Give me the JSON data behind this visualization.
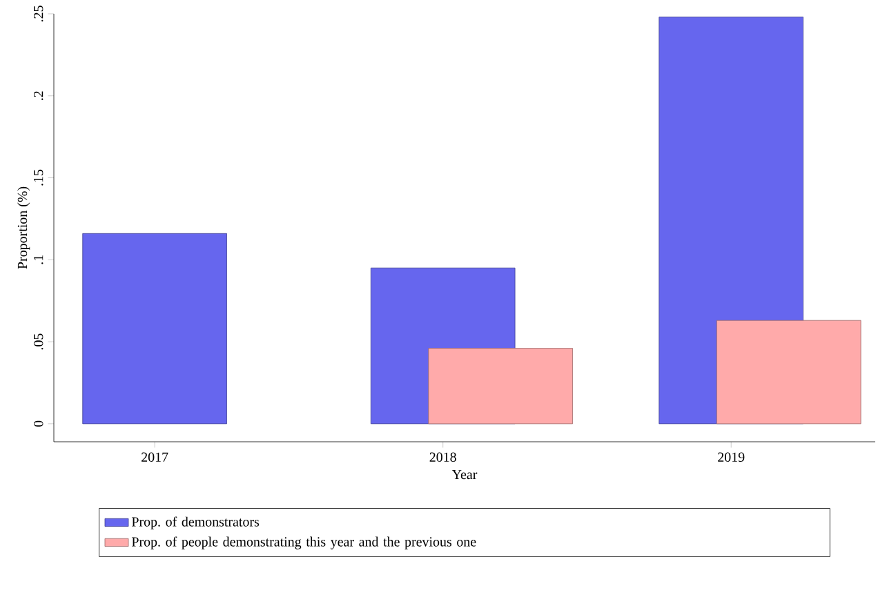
{
  "chart_data": {
    "type": "bar",
    "categories": [
      "2017",
      "2018",
      "2019"
    ],
    "xlabel": "Year",
    "ylabel": "Proportion (%)",
    "series": [
      {
        "name": "Prop. of demonstrators",
        "color": "#6666ee",
        "values": [
          0.116,
          0.095,
          0.248
        ]
      },
      {
        "name": "Prop. of people demonstrating this year and the previous one",
        "color": "#ffaaaa",
        "values": [
          null,
          0.046,
          0.063
        ]
      }
    ],
    "ylim": [
      -0.011,
      0.25
    ],
    "yticks": [
      0,
      {
        "value": 0.05,
        "label": ".05"
      },
      {
        "value": 0.1,
        "label": ".1"
      },
      {
        "value": 0.15,
        "label": ".15"
      },
      {
        "value": 0.2,
        "label": ".2"
      },
      {
        "value": 0.25,
        "label": ".25"
      }
    ],
    "grid": false,
    "legend": "bottom"
  }
}
